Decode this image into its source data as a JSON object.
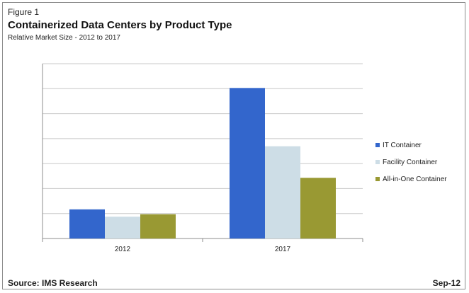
{
  "header": {
    "figure_label": "Figure 1",
    "title": "Containerized Data Centers by Product Type",
    "subtitle": "Relative Market Size - 2012 to 2017"
  },
  "footer": {
    "source": "Source: IMS Research",
    "date": "Sep-12"
  },
  "chart_data": {
    "type": "bar",
    "title": "Containerized Data Centers by Product Type",
    "subtitle": "Relative Market Size - 2012 to 2017",
    "categories": [
      "2012",
      "2017"
    ],
    "series": [
      {
        "name": "IT Container",
        "color": "#3366cc",
        "values": [
          12,
          62
        ]
      },
      {
        "name": "Facility Container",
        "color": "#cddde6",
        "values": [
          9,
          38
        ]
      },
      {
        "name": "All-in-One Container",
        "color": "#999933",
        "values": [
          10,
          25
        ]
      }
    ],
    "ylim": [
      0,
      72
    ],
    "ytick_count": 7,
    "yaxis_labels_shown": false,
    "grid": true,
    "legend": "right"
  }
}
